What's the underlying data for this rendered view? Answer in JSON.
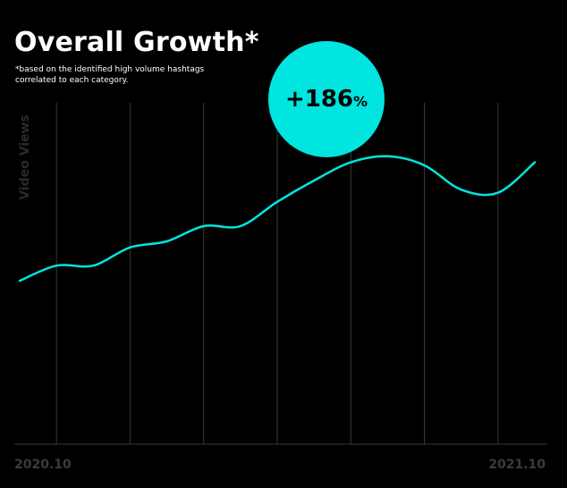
{
  "header": {
    "title": "Overall Growth*",
    "subtitle_line1": "*based on the identified high volume hashtags",
    "subtitle_line2": "correlated to each category."
  },
  "badge": {
    "value": "+186",
    "unit": "%",
    "color": "#00e5e0"
  },
  "chart_data": {
    "type": "line",
    "title": "Overall Growth*",
    "ylabel": "Video Views",
    "xlabel": "",
    "x_tick_labels": [
      "2020.10",
      "2021.10"
    ],
    "x": [
      "2020.09",
      "2020.10",
      "2020.11",
      "2020.12",
      "2021.01",
      "2021.02",
      "2021.03",
      "2021.04",
      "2021.05",
      "2021.06",
      "2021.07",
      "2021.08",
      "2021.09",
      "2021.10",
      "2021.11"
    ],
    "ylim": [
      0,
      100
    ],
    "series": [
      {
        "color": "#00e5e0",
        "values": [
          37,
          42,
          42,
          48,
          50,
          55,
          55,
          63,
          70,
          76,
          78,
          75,
          67,
          66,
          76
        ]
      }
    ],
    "grid": "vertical",
    "growth_percent": 186
  }
}
